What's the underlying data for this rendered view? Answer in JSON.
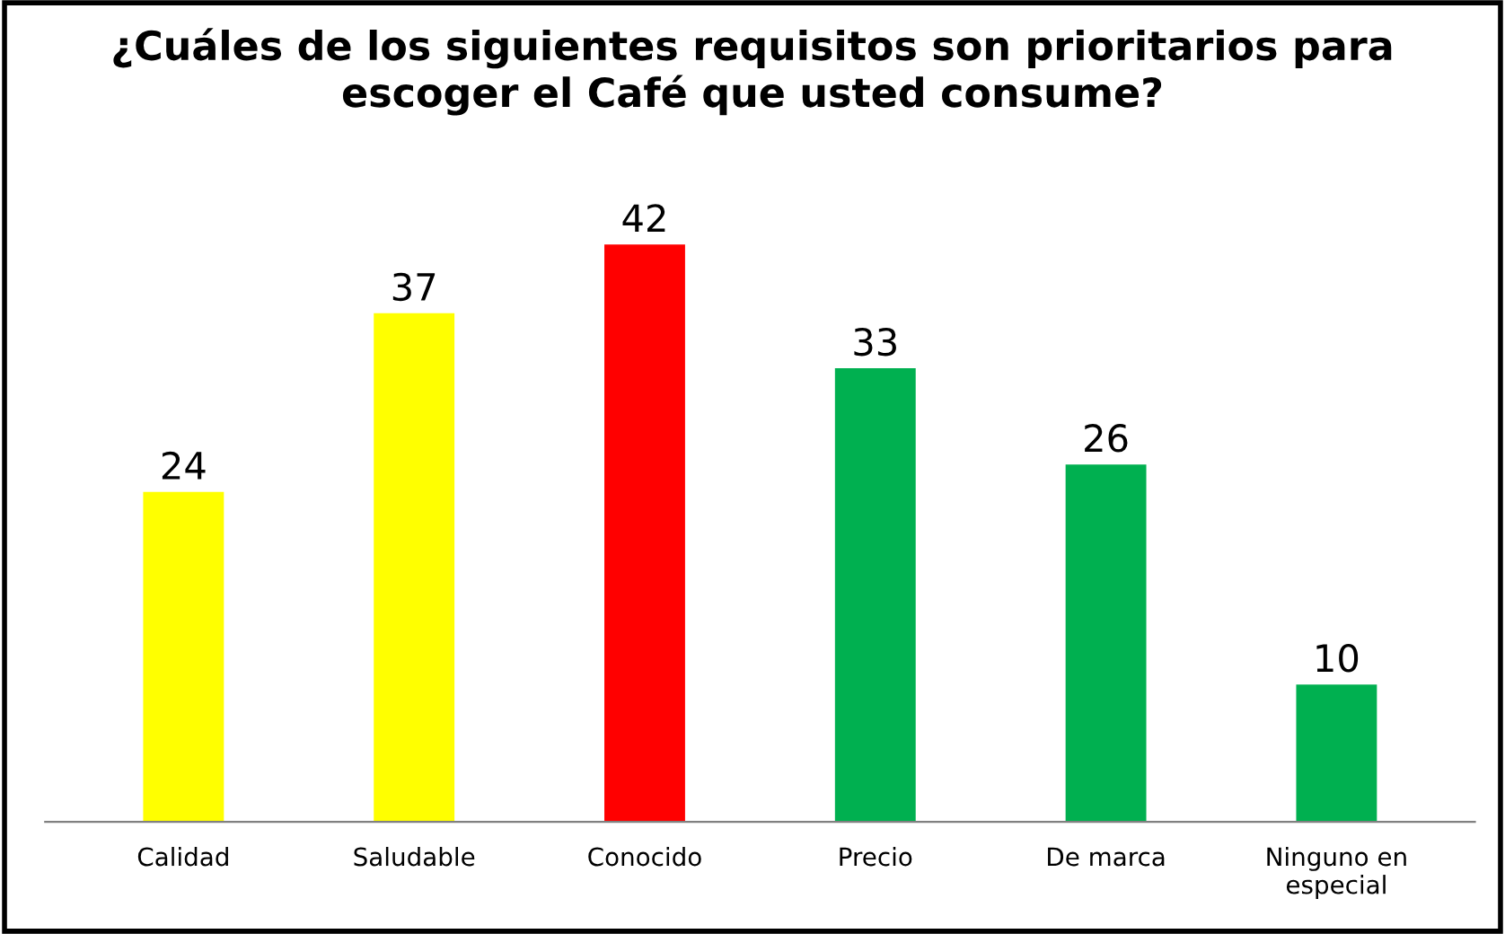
{
  "chart_data": {
    "type": "bar",
    "title": "¿Cuáles de los siguientes requisitos son prioritarios para\nescoger el Café que usted consume?",
    "categories": [
      "Calidad",
      "Saludable",
      "Conocido",
      "Precio",
      "De marca",
      "Ninguno en\nespecial"
    ],
    "values": [
      24,
      37,
      42,
      33,
      26,
      10
    ],
    "colors": [
      "#ffff00",
      "#ffff00",
      "#ff0000",
      "#00b050",
      "#00b050",
      "#00b050"
    ],
    "data_labels": true,
    "grid": false,
    "legend": false,
    "tick_labels": "x"
  }
}
